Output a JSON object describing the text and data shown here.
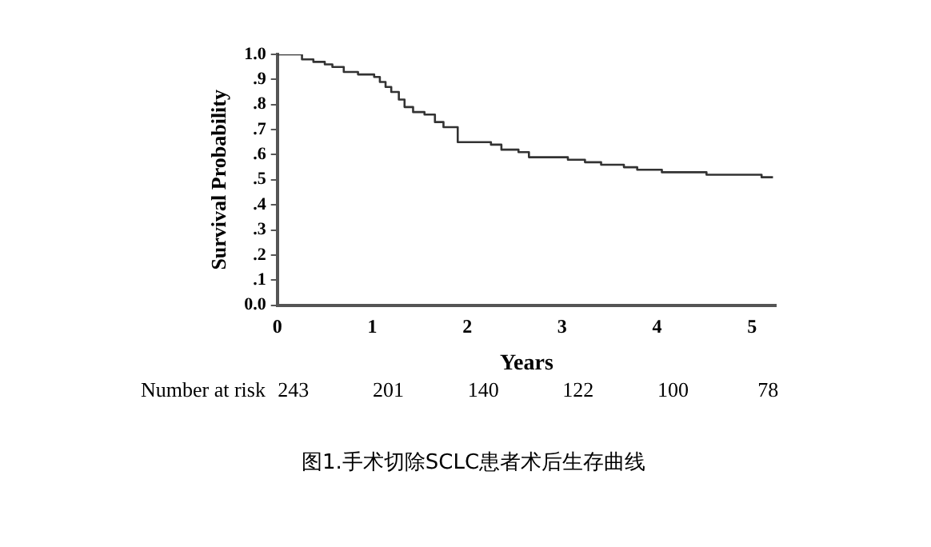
{
  "chart_data": {
    "type": "step",
    "title": "图1.手术切除SCLC患者术后生存曲线",
    "xlabel": "Years",
    "ylabel": "Survival Probability",
    "x": [
      0,
      0.26,
      0.38,
      0.5,
      0.58,
      0.7,
      0.85,
      1.02,
      1.08,
      1.14,
      1.2,
      1.28,
      1.34,
      1.43,
      1.55,
      1.66,
      1.75,
      1.9,
      2.25,
      2.36,
      2.54,
      2.65,
      3.06,
      3.24,
      3.41,
      3.65,
      3.79,
      4.05,
      4.52,
      5.1,
      5.22
    ],
    "series": [
      {
        "color": "#333333",
        "values": [
          1.0,
          0.98,
          0.97,
          0.96,
          0.95,
          0.93,
          0.92,
          0.91,
          0.89,
          0.87,
          0.85,
          0.82,
          0.79,
          0.77,
          0.76,
          0.73,
          0.71,
          0.65,
          0.64,
          0.62,
          0.61,
          0.59,
          0.58,
          0.57,
          0.56,
          0.55,
          0.54,
          0.53,
          0.52,
          0.51,
          0.51
        ]
      }
    ],
    "xlim": [
      0,
      5.25
    ],
    "xticks": [
      0,
      1,
      2,
      3,
      4,
      5
    ],
    "ylim": [
      0,
      1
    ],
    "yticks": [
      {
        "value": 0,
        "label": "0.0"
      },
      {
        "value": 0.1,
        "label": ".1"
      },
      {
        "value": 0.2,
        "label": ".2"
      },
      {
        "value": 0.3,
        "label": ".3"
      },
      {
        "value": 0.4,
        "label": ".4"
      },
      {
        "value": 0.5,
        "label": ".5"
      },
      {
        "value": 0.6,
        "label": ".6"
      },
      {
        "value": 0.7,
        "label": ".7"
      },
      {
        "value": 0.8,
        "label": ".8"
      },
      {
        "value": 0.9,
        "label": ".9"
      },
      {
        "value": 1,
        "label": "1.0"
      }
    ],
    "annotations": [
      "Number at risk",
      "243",
      "201",
      "140",
      "122",
      "100",
      "78"
    ],
    "grid": false,
    "legend": false,
    "marker": "none",
    "line_style": "solid"
  }
}
